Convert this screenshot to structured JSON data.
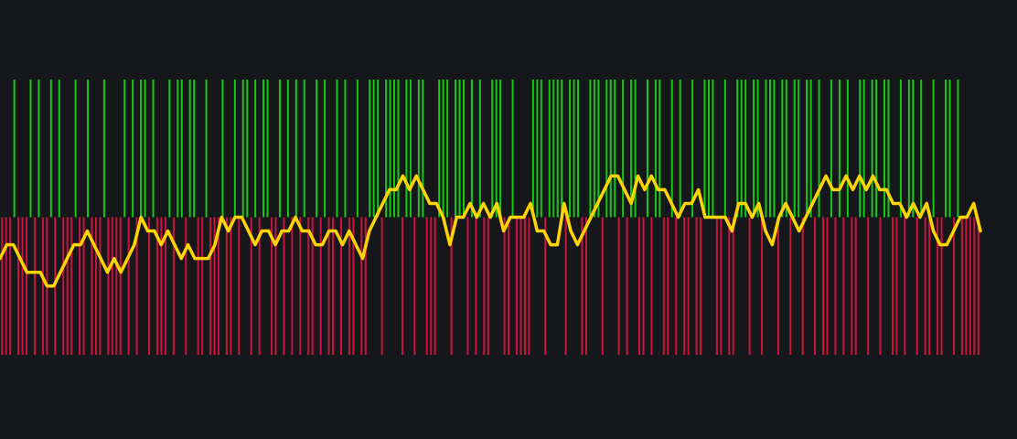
{
  "chart_data": {
    "type": "bar",
    "background": "#16171b",
    "ylim": [
      -1,
      1
    ],
    "y2lim": [
      -10,
      10
    ],
    "series": [
      {
        "type": "bar",
        "up_color": "#14c814",
        "down_color": "#c8143c",
        "values": [
          -1,
          -1,
          -1,
          1,
          -1,
          -1,
          -1,
          1,
          -1,
          1,
          -1,
          -1,
          1,
          -1,
          1,
          -1,
          -1,
          -1,
          1,
          -1,
          -1,
          1,
          -1,
          -1,
          -1,
          1,
          -1,
          -1,
          -1,
          -1,
          1,
          -1,
          1,
          -1,
          1,
          1,
          -1,
          1,
          -1,
          -1,
          -1,
          1,
          -1,
          1,
          1,
          -1,
          1,
          1,
          -1,
          -1,
          1,
          -1,
          -1,
          -1,
          1,
          -1,
          -1,
          1,
          -1,
          1,
          1,
          -1,
          1,
          -1,
          1,
          1,
          -1,
          -1,
          1,
          -1,
          1,
          -1,
          1,
          -1,
          1,
          -1,
          -1,
          1,
          -1,
          1,
          -1,
          -1,
          1,
          -1,
          1,
          -1,
          -1,
          1,
          -1,
          -1,
          1,
          1,
          1,
          -1,
          1,
          1,
          1,
          1,
          -1,
          1,
          1,
          -1,
          1,
          1,
          -1,
          -1,
          -1,
          1,
          1,
          1,
          -1,
          1,
          1,
          1,
          -1,
          1,
          -1,
          1,
          -1,
          -1,
          1,
          1,
          1,
          -1,
          -1,
          1,
          -1,
          -1,
          -1,
          -1,
          1,
          1,
          1,
          -1,
          1,
          1,
          1,
          1,
          -1,
          1,
          1,
          1,
          -1,
          -1,
          1,
          1,
          1,
          -1,
          1,
          1,
          1,
          -1,
          1,
          -1,
          1,
          1,
          -1,
          -1,
          1,
          -1,
          1,
          1,
          -1,
          -1,
          1,
          -1,
          1,
          -1,
          -1,
          1,
          -1,
          -1,
          1,
          1,
          1,
          -1,
          -1,
          1,
          -1,
          -1,
          1,
          1,
          1,
          -1,
          1,
          1,
          -1,
          1,
          1,
          1,
          -1,
          1,
          1,
          -1,
          1,
          1,
          -1,
          1,
          1,
          -1,
          1,
          -1,
          -1,
          1,
          -1,
          1,
          -1,
          1,
          -1,
          -1,
          1,
          1,
          -1,
          1,
          1,
          -1,
          1,
          1,
          -1,
          -1,
          1,
          -1,
          1,
          1,
          -1,
          1,
          -1,
          -1,
          1,
          -1,
          -1,
          1,
          1,
          -1,
          1,
          -1,
          -1,
          -1,
          -1,
          -1
        ]
      },
      {
        "type": "line",
        "axis": "y2",
        "color": "#ffd400",
        "values": [
          -3,
          -2,
          -2,
          -3,
          -4,
          -4,
          -4,
          -5,
          -5,
          -4,
          -3,
          -2,
          -2,
          -1,
          -2,
          -3,
          -4,
          -3,
          -4,
          -3,
          -2,
          0,
          -1,
          -1,
          -2,
          -1,
          -2,
          -3,
          -2,
          -3,
          -3,
          -3,
          -2,
          0,
          -1,
          0,
          0,
          -1,
          -2,
          -1,
          -1,
          -2,
          -1,
          -1,
          0,
          -1,
          -1,
          -2,
          -2,
          -1,
          -1,
          -2,
          -1,
          -2,
          -3,
          -1,
          0,
          1,
          2,
          2,
          3,
          2,
          3,
          2,
          1,
          1,
          0,
          -2,
          0,
          0,
          1,
          0,
          1,
          0,
          1,
          -1,
          0,
          0,
          0,
          1,
          -1,
          -1,
          -2,
          -2,
          1,
          -1,
          -2,
          -1,
          0,
          1,
          2,
          3,
          3,
          2,
          1,
          3,
          2,
          3,
          2,
          2,
          1,
          0,
          1,
          1,
          2,
          0,
          0,
          0,
          0,
          -1,
          1,
          1,
          0,
          1,
          -1,
          -2,
          0,
          1,
          0,
          -1,
          0,
          1,
          2,
          3,
          2,
          2,
          3,
          2,
          3,
          2,
          3,
          2,
          2,
          1,
          1,
          0,
          1,
          0,
          1,
          -1,
          -2,
          -2,
          -1,
          0,
          0,
          1,
          -1
        ]
      }
    ]
  }
}
